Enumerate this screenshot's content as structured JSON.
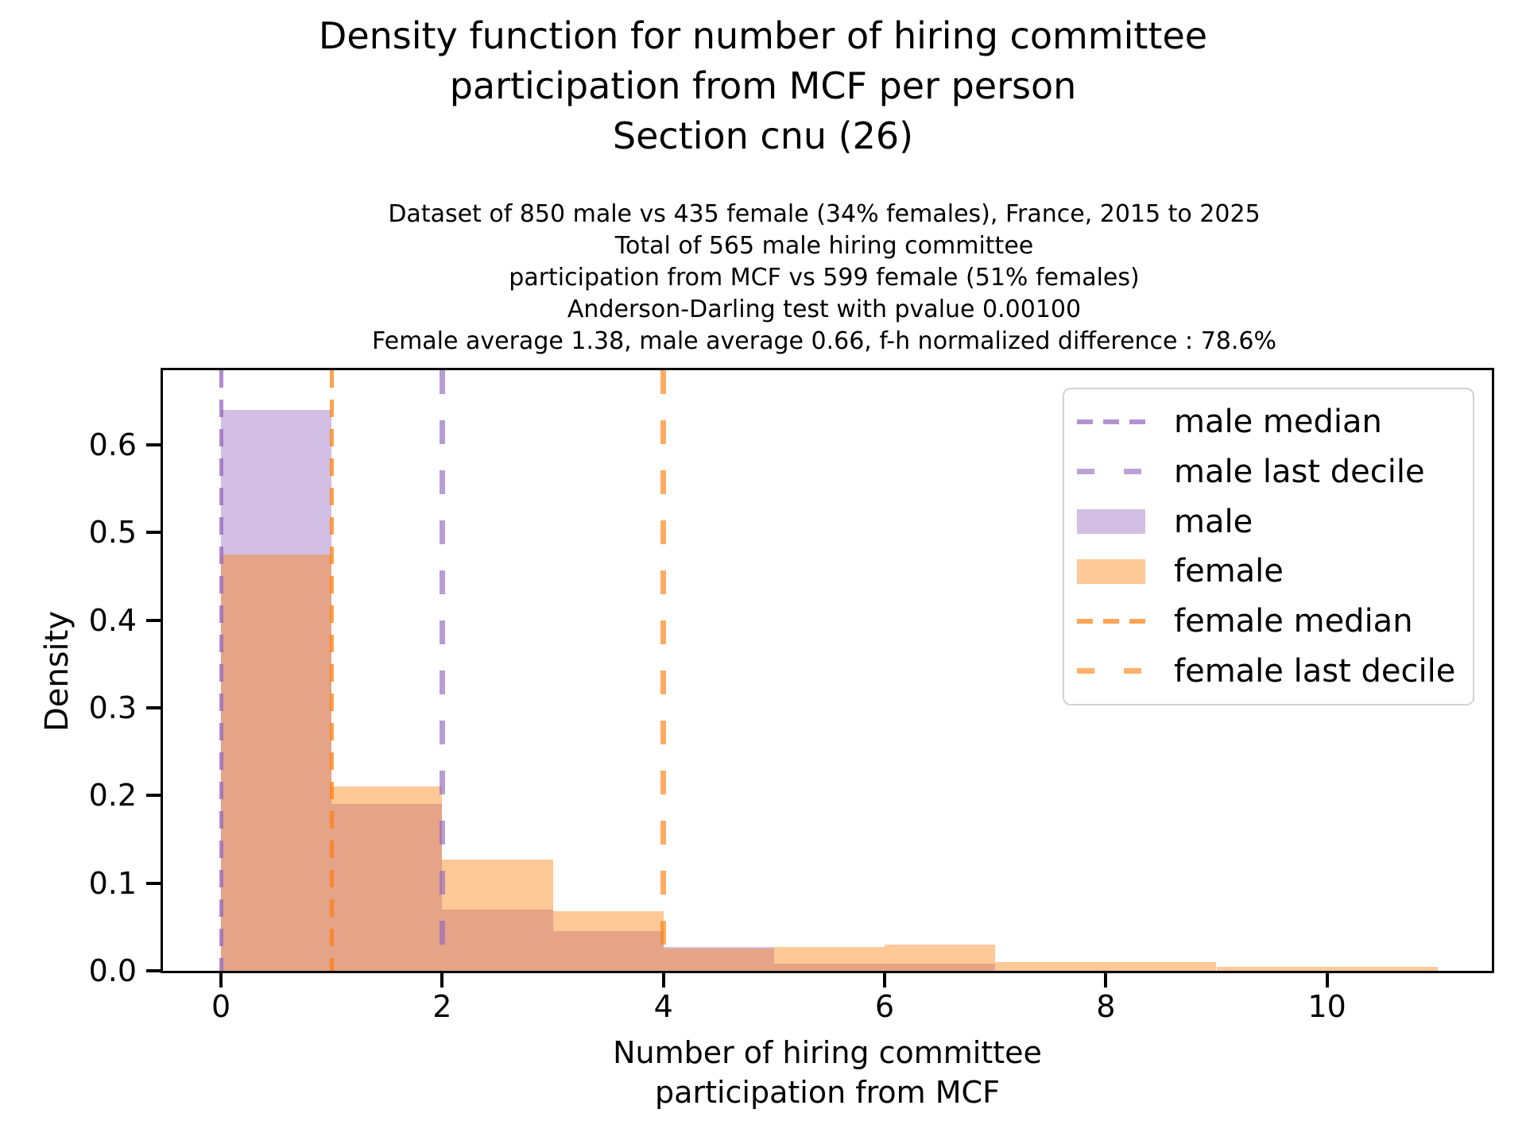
{
  "chart_data": {
    "type": "bar",
    "subtype": "overlaid-density-histogram",
    "suptitle_lines": [
      "Density function for number of hiring committee",
      "participation from MCF per person",
      "Section cnu (26)"
    ],
    "title_lines": [
      "Dataset of 850 male vs 435 female (34% females), France, 2015 to 2025",
      "Total of 565 male hiring committee",
      "participation from MCF vs 599 female (51% females)",
      "Anderson-Darling test with pvalue 0.00100",
      "Female average 1.38, male average 0.66, f-h normalized difference : 78.6%"
    ],
    "xlabel_lines": [
      "Number of hiring committee",
      "participation from MCF"
    ],
    "ylabel": "Density",
    "bin_edges": [
      0,
      1,
      2,
      3,
      4,
      5,
      6,
      7,
      8,
      9,
      10,
      11
    ],
    "series": [
      {
        "name": "male",
        "fill": "rgba(148,103,189,0.42)",
        "values": [
          0.64,
          0.19,
          0.07,
          0.045,
          0.027,
          0.008,
          0.008,
          0,
          0,
          0,
          0
        ]
      },
      {
        "name": "female",
        "fill": "rgba(255,127,14,0.43)",
        "values": [
          0.475,
          0.21,
          0.127,
          0.068,
          0.025,
          0.027,
          0.03,
          0.01,
          0.01,
          0.005,
          0.005
        ]
      }
    ],
    "vlines": [
      {
        "label": "male median",
        "x": 0,
        "pattern": "median",
        "color": "rgba(148,103,189,0.75)"
      },
      {
        "label": "female median",
        "x": 1,
        "pattern": "median",
        "color": "rgba(255,127,14,0.73)"
      },
      {
        "label": "male last decile",
        "x": 2,
        "pattern": "decile",
        "color": "rgba(148,103,189,0.65)"
      },
      {
        "label": "female last decile",
        "x": 4,
        "pattern": "decile",
        "color": "rgba(255,127,14,0.65)"
      }
    ],
    "x_ticks": [
      "0",
      "2",
      "4",
      "6",
      "8",
      "10"
    ],
    "x_tick_values": [
      0,
      2,
      4,
      6,
      8,
      10
    ],
    "y_ticks": [
      "0.0",
      "0.1",
      "0.2",
      "0.3",
      "0.4",
      "0.5",
      "0.6"
    ],
    "y_tick_values": [
      0,
      0.1,
      0.2,
      0.3,
      0.4,
      0.5,
      0.6
    ],
    "xlim": [
      -0.525,
      11.49
    ],
    "ylim": [
      0,
      0.685
    ],
    "grid": false,
    "legend_position": "upper right",
    "stats": {
      "male_median": 0,
      "male_last_decile": 2,
      "female_median": 1,
      "female_last_decile": 4,
      "female_average": 1.38,
      "male_average": 0.66,
      "normalized_difference_pct": 78.6,
      "pvalue": "0.00100"
    }
  },
  "legend": {
    "entries": [
      {
        "label": "male median",
        "handle": "dashed-median",
        "color": "rgba(148,103,189,0.72)"
      },
      {
        "label": "male last decile",
        "handle": "dashed-decile",
        "color": "rgba(148,103,189,0.62)"
      },
      {
        "label": "male",
        "handle": "patch",
        "color": "rgba(148,103,189,0.42)"
      },
      {
        "label": "female",
        "handle": "patch",
        "color": "rgba(255,127,14,0.43)"
      },
      {
        "label": "female median",
        "handle": "dashed-median",
        "color": "rgba(255,127,14,0.70)"
      },
      {
        "label": "female last decile",
        "handle": "dashed-decile",
        "color": "rgba(255,127,14,0.62)"
      }
    ]
  }
}
